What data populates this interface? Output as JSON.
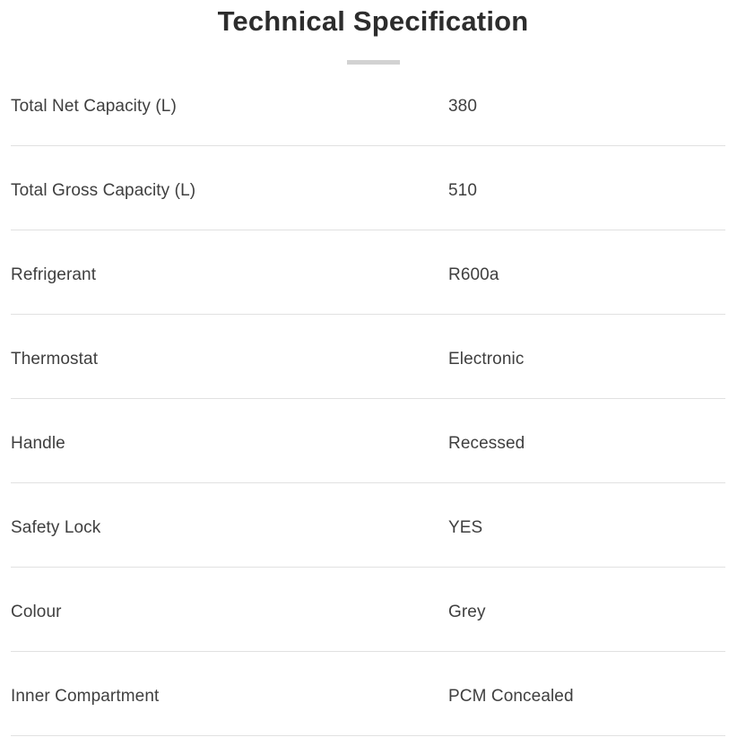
{
  "header": {
    "title": "Technical Specification"
  },
  "rows": [
    {
      "label": "Total Net Capacity (L)",
      "value": "380"
    },
    {
      "label": "Total Gross Capacity (L)",
      "value": "510"
    },
    {
      "label": "Refrigerant",
      "value": "R600a"
    },
    {
      "label": "Thermostat",
      "value": "Electronic"
    },
    {
      "label": "Handle",
      "value": "Recessed"
    },
    {
      "label": "Safety Lock",
      "value": "YES"
    },
    {
      "label": "Colour",
      "value": "Grey"
    },
    {
      "label": "Inner Compartment",
      "value": "PCM Concealed"
    }
  ],
  "colors": {
    "background": "#ffffff",
    "title_text": "#2d2d2d",
    "body_text": "#3f3f3f",
    "divider": "#e1e1e1",
    "title_underline_bar": "#d2d2d2"
  }
}
